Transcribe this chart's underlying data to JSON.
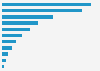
{
  "values": [
    100,
    90,
    57,
    40,
    31,
    23,
    16,
    11,
    7,
    4,
    2
  ],
  "bar_color": "#2196c8",
  "background_color": "#f4f4f4",
  "xlim": [
    0,
    108
  ]
}
